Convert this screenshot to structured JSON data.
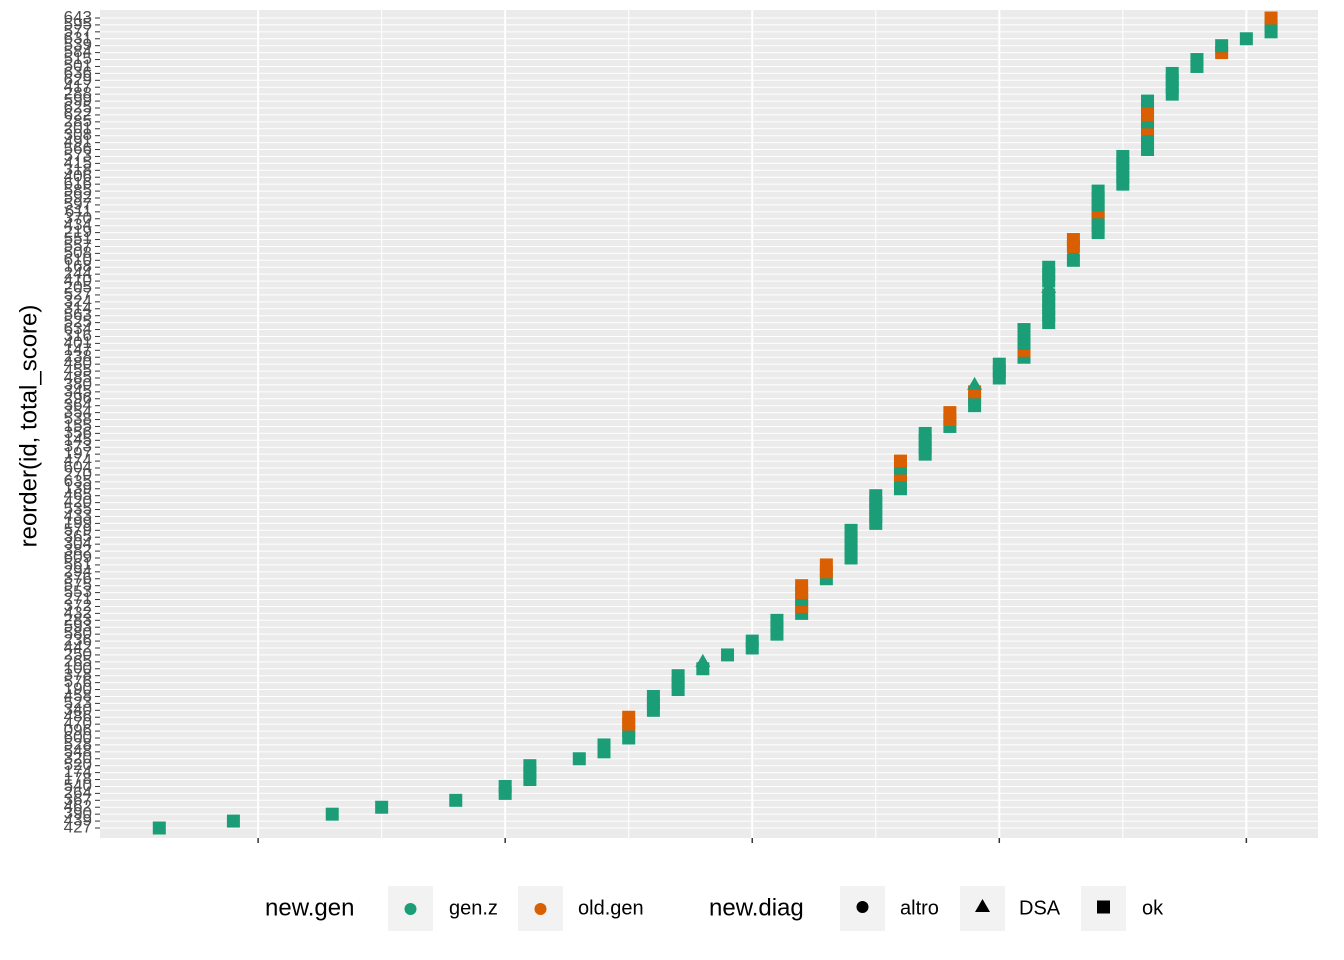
{
  "chart_data": {
    "type": "dot",
    "y_label": "reorder(id, total_score)",
    "categories": [
      "427",
      "439",
      "390",
      "462",
      "367",
      "264",
      "540",
      "178",
      "174",
      "520",
      "320",
      "548",
      "528",
      "600",
      "096",
      "470",
      "486",
      "340",
      "523",
      "458",
      "190",
      "576",
      "378",
      "100",
      "265",
      "250",
      "442",
      "236",
      "580",
      "593",
      "283",
      "432",
      "372",
      "271",
      "553",
      "575",
      "376",
      "294",
      "561",
      "609",
      "382",
      "304",
      "365",
      "579",
      "199",
      "433",
      "535",
      "420",
      "465",
      "139",
      "635",
      "270",
      "604",
      "474",
      "197",
      "373",
      "145",
      "356",
      "155",
      "538",
      "354",
      "364",
      "296",
      "345",
      "380",
      "485",
      "455",
      "480",
      "238",
      "147",
      "401",
      "316",
      "634",
      "525",
      "563",
      "314",
      "324",
      "527",
      "205",
      "410",
      "244",
      "168",
      "610",
      "508",
      "557",
      "551",
      "219",
      "434",
      "370",
      "611",
      "597",
      "592",
      "585",
      "616",
      "406",
      "318",
      "415",
      "573",
      "566",
      "491",
      "308",
      "201",
      "285",
      "622",
      "625",
      "599",
      "288",
      "417",
      "629",
      "636",
      "501",
      "515",
      "584",
      "539",
      "631",
      "577",
      "595",
      "643"
    ],
    "values": [
      6,
      9,
      13,
      15,
      18,
      20,
      20,
      21,
      21,
      21,
      23,
      24,
      24,
      25,
      25,
      25,
      25,
      26,
      26,
      26,
      27,
      27,
      27,
      28,
      28,
      29,
      30,
      30,
      31,
      31,
      31,
      32,
      32,
      32,
      32,
      32,
      33,
      33,
      33,
      34,
      34,
      34,
      34,
      34,
      35,
      35,
      35,
      35,
      35,
      36,
      36,
      36,
      36,
      36,
      37,
      37,
      37,
      37,
      38,
      38,
      38,
      39,
      39,
      39,
      39,
      40,
      40,
      40,
      41,
      41,
      41,
      41,
      41,
      42,
      42,
      42,
      42,
      42,
      42,
      42,
      42,
      42,
      43,
      43,
      43,
      43,
      44,
      44,
      44,
      44,
      44,
      44,
      44,
      45,
      45,
      45,
      45,
      45,
      46,
      46,
      46,
      46,
      46,
      46,
      46,
      46,
      47,
      47,
      47,
      47,
      48,
      48,
      49,
      49,
      50,
      51,
      51,
      51
    ],
    "gen": [
      "gen.z",
      "gen.z",
      "gen.z",
      "gen.z",
      "gen.z",
      "gen.z",
      "gen.z",
      "gen.z",
      "gen.z",
      "gen.z",
      "gen.z",
      "gen.z",
      "gen.z",
      "gen.z",
      "gen.z",
      "old.gen",
      "old.gen",
      "gen.z",
      "gen.z",
      "gen.z",
      "gen.z",
      "gen.z",
      "gen.z",
      "gen.z",
      "gen.z",
      "gen.z",
      "gen.z",
      "gen.z",
      "gen.z",
      "gen.z",
      "gen.z",
      "gen.z",
      "old.gen",
      "gen.z",
      "old.gen",
      "old.gen",
      "gen.z",
      "old.gen",
      "old.gen",
      "gen.z",
      "gen.z",
      "gen.z",
      "gen.z",
      "gen.z",
      "gen.z",
      "gen.z",
      "gen.z",
      "gen.z",
      "gen.z",
      "gen.z",
      "gen.z",
      "old.gen",
      "gen.z",
      "old.gen",
      "gen.z",
      "gen.z",
      "gen.z",
      "gen.z",
      "gen.z",
      "old.gen",
      "old.gen",
      "gen.z",
      "gen.z",
      "old.gen",
      "gen.z",
      "gen.z",
      "gen.z",
      "gen.z",
      "gen.z",
      "old.gen",
      "gen.z",
      "gen.z",
      "gen.z",
      "gen.z",
      "gen.z",
      "gen.z",
      "gen.z",
      "gen.z",
      "gen.z",
      "gen.z",
      "gen.z",
      "gen.z",
      "gen.z",
      "gen.z",
      "old.gen",
      "old.gen",
      "gen.z",
      "gen.z",
      "gen.z",
      "old.gen",
      "gen.z",
      "gen.z",
      "gen.z",
      "gen.z",
      "gen.z",
      "gen.z",
      "gen.z",
      "gen.z",
      "gen.z",
      "gen.z",
      "gen.z",
      "old.gen",
      "gen.z",
      "old.gen",
      "old.gen",
      "gen.z",
      "gen.z",
      "gen.z",
      "gen.z",
      "gen.z",
      "gen.z",
      "gen.z",
      "old.gen",
      "gen.z",
      "gen.z",
      "gen.z",
      "gen.z",
      "old.gen"
    ],
    "diag": [
      "ok",
      "ok",
      "ok",
      "ok",
      "ok",
      "ok",
      "ok",
      "ok",
      "ok",
      "ok",
      "ok",
      "ok",
      "ok",
      "ok",
      "ok",
      "ok",
      "ok",
      "ok",
      "ok",
      "ok",
      "ok",
      "ok",
      "ok",
      "ok",
      "DSA",
      "ok",
      "ok",
      "ok",
      "ok",
      "ok",
      "ok",
      "ok",
      "ok",
      "ok",
      "ok",
      "ok",
      "ok",
      "ok",
      "ok",
      "ok",
      "ok",
      "ok",
      "ok",
      "ok",
      "ok",
      "ok",
      "ok",
      "ok",
      "ok",
      "ok",
      "ok",
      "ok",
      "ok",
      "ok",
      "ok",
      "ok",
      "ok",
      "ok",
      "ok",
      "ok",
      "ok",
      "ok",
      "ok",
      "ok",
      "DSA",
      "ok",
      "ok",
      "ok",
      "ok",
      "ok",
      "ok",
      "ok",
      "ok",
      "ok",
      "ok",
      "ok",
      "ok",
      "ok",
      "DSA",
      "ok",
      "ok",
      "ok",
      "ok",
      "altro",
      "ok",
      "ok",
      "ok",
      "ok",
      "ok",
      "ok",
      "ok",
      "ok",
      "ok",
      "ok",
      "ok",
      "ok",
      "ok",
      "ok",
      "ok",
      "ok",
      "ok",
      "ok",
      "ok",
      "ok",
      "ok",
      "ok",
      "ok",
      "ok",
      "ok",
      "ok",
      "ok",
      "ok",
      "ok",
      "ok",
      "ok",
      "ok",
      "ok",
      "ok"
    ],
    "xlim": [
      3.6,
      52.9
    ],
    "xticks": [
      10,
      20,
      30,
      40,
      50
    ],
    "legend_gen": {
      "title": "new.gen",
      "labels": [
        "gen.z",
        "old.gen"
      ],
      "colors": [
        "#1b9e77",
        "#d95f02"
      ]
    },
    "legend_diag": {
      "title": "new.diag",
      "labels": [
        "altro",
        "DSA",
        "ok"
      ],
      "shapes": [
        "circle",
        "triangle",
        "square"
      ]
    },
    "grid": true,
    "legend_position": "bottom"
  }
}
